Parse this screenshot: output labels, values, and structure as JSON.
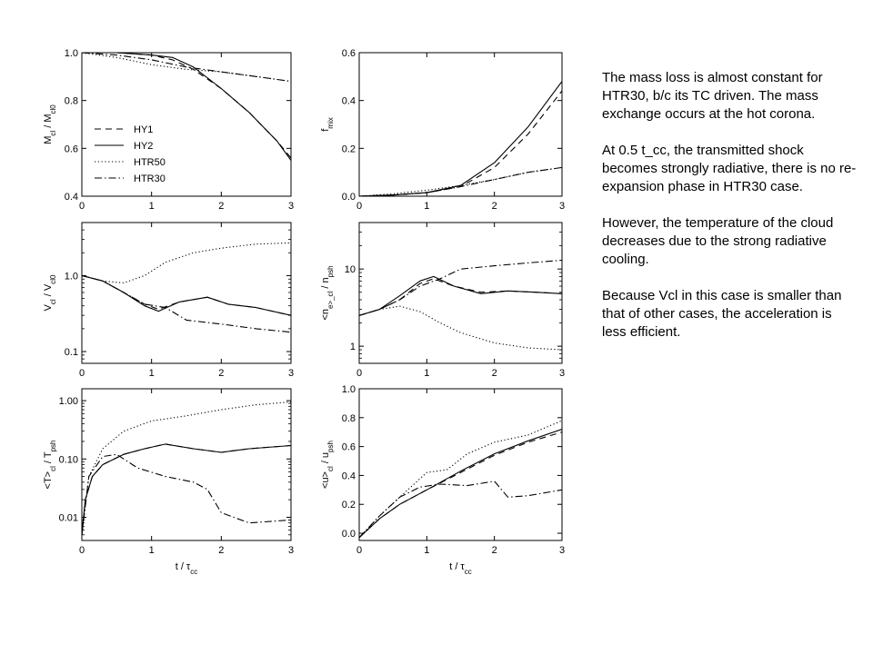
{
  "notes": {
    "p1": "The mass loss is almost constant for HTR30, b/c its TC driven. The mass exchange occurs at the hot corona.",
    "p2": "At 0.5 t_cc, the transmitted shock becomes strongly radiative, there is no re-expansion phase in HTR30 case.",
    "p3": "However, the temperature of the cloud decreases due to the strong radiative cooling.",
    "p4": "Because Vcl in this case is smaller than that of other cases, the acceleration is less efficient."
  },
  "legend": [
    {
      "name": "HY1",
      "dash": "dashed"
    },
    {
      "name": "HY2",
      "dash": "solid"
    },
    {
      "name": "HTR50",
      "dash": "dotted"
    },
    {
      "name": "HTR30",
      "dash": "dashdot"
    }
  ],
  "chart_data": [
    {
      "type": "line",
      "ylabel": "M_cl / M_cl0",
      "xlabel": "",
      "xlim": [
        0,
        3
      ],
      "ylim": [
        0.4,
        1.0
      ],
      "xticks": [
        0,
        1,
        2,
        3
      ],
      "yticks": [
        0.4,
        0.6,
        0.8,
        1.0
      ],
      "ytick_labels": [
        "0.4",
        "0.6",
        "0.8",
        "1.0"
      ],
      "series": [
        {
          "name": "HY1",
          "x": [
            0,
            0.5,
            1.0,
            1.3,
            1.6,
            2.0,
            2.4,
            2.8,
            3.0
          ],
          "y": [
            1.0,
            1.0,
            0.99,
            0.97,
            0.93,
            0.85,
            0.75,
            0.63,
            0.56
          ]
        },
        {
          "name": "HY2",
          "x": [
            0,
            0.5,
            1.0,
            1.3,
            1.6,
            2.0,
            2.4,
            2.8,
            3.0
          ],
          "y": [
            1.0,
            1.0,
            0.99,
            0.98,
            0.94,
            0.85,
            0.75,
            0.63,
            0.55
          ]
        },
        {
          "name": "HTR50",
          "x": [
            0,
            0.5,
            1.0,
            1.5,
            2.0,
            2.5,
            3.0
          ],
          "y": [
            1.0,
            0.98,
            0.95,
            0.93,
            0.92,
            0.9,
            0.88
          ]
        },
        {
          "name": "HTR30",
          "x": [
            0,
            0.5,
            1.0,
            1.5,
            2.0,
            2.5,
            3.0
          ],
          "y": [
            1.0,
            0.99,
            0.97,
            0.94,
            0.92,
            0.9,
            0.88
          ]
        }
      ]
    },
    {
      "type": "line",
      "ylabel": "f_mix",
      "xlabel": "",
      "xlim": [
        0,
        3
      ],
      "ylim": [
        0.0,
        0.6
      ],
      "xticks": [
        0,
        1,
        2,
        3
      ],
      "yticks": [
        0.0,
        0.2,
        0.4,
        0.6
      ],
      "ytick_labels": [
        "0.0",
        "0.2",
        "0.4",
        "0.6"
      ],
      "series": [
        {
          "name": "HY1",
          "x": [
            0,
            0.5,
            1.0,
            1.5,
            2.0,
            2.5,
            3.0
          ],
          "y": [
            0.0,
            0.005,
            0.015,
            0.04,
            0.12,
            0.26,
            0.44
          ]
        },
        {
          "name": "HY2",
          "x": [
            0,
            0.5,
            1.0,
            1.5,
            2.0,
            2.5,
            3.0
          ],
          "y": [
            0.0,
            0.005,
            0.015,
            0.045,
            0.14,
            0.29,
            0.48
          ]
        },
        {
          "name": "HTR50",
          "x": [
            0,
            0.5,
            1.0,
            1.5,
            2.0,
            2.5,
            3.0
          ],
          "y": [
            0.0,
            0.01,
            0.025,
            0.045,
            0.07,
            0.1,
            0.12
          ]
        },
        {
          "name": "HTR30",
          "x": [
            0,
            0.5,
            1.0,
            1.5,
            2.0,
            2.5,
            3.0
          ],
          "y": [
            0.0,
            0.005,
            0.015,
            0.04,
            0.07,
            0.1,
            0.12
          ]
        }
      ]
    },
    {
      "type": "line",
      "ylabel": "V_cl / V_cl0",
      "xlabel": "",
      "xlim": [
        0,
        3
      ],
      "ylim": [
        0.07,
        5
      ],
      "yscale": "log",
      "xticks": [
        0,
        1,
        2,
        3
      ],
      "yticks": [
        0.1,
        1.0
      ],
      "ytick_labels": [
        "0.1",
        "1.0"
      ],
      "series": [
        {
          "name": "HY1",
          "x": [
            0,
            0.3,
            0.6,
            0.9,
            1.1,
            1.4,
            1.8,
            2.1,
            2.5,
            3.0
          ],
          "y": [
            1.0,
            0.85,
            0.6,
            0.42,
            0.36,
            0.45,
            0.52,
            0.42,
            0.38,
            0.3
          ]
        },
        {
          "name": "HY2",
          "x": [
            0,
            0.3,
            0.6,
            0.9,
            1.1,
            1.4,
            1.8,
            2.1,
            2.5,
            3.0
          ],
          "y": [
            1.0,
            0.85,
            0.6,
            0.4,
            0.34,
            0.45,
            0.52,
            0.42,
            0.38,
            0.3
          ]
        },
        {
          "name": "HTR50",
          "x": [
            0,
            0.3,
            0.6,
            0.9,
            1.2,
            1.6,
            2.0,
            2.5,
            3.0
          ],
          "y": [
            1.0,
            0.85,
            0.8,
            1.0,
            1.5,
            2.0,
            2.3,
            2.6,
            2.7
          ]
        },
        {
          "name": "HTR30",
          "x": [
            0,
            0.3,
            0.6,
            0.9,
            1.2,
            1.5,
            2.0,
            2.5,
            3.0
          ],
          "y": [
            1.0,
            0.85,
            0.6,
            0.42,
            0.38,
            0.26,
            0.23,
            0.2,
            0.18
          ]
        }
      ]
    },
    {
      "type": "line",
      "ylabel": "<n_e>_cl / n_psh",
      "xlabel": "",
      "xlim": [
        0,
        3
      ],
      "ylim": [
        0.6,
        40
      ],
      "yscale": "log",
      "xticks": [
        0,
        1,
        2,
        3
      ],
      "yticks": [
        1,
        10
      ],
      "ytick_labels": [
        "1",
        "10"
      ],
      "series": [
        {
          "name": "HY1",
          "x": [
            0,
            0.3,
            0.6,
            0.9,
            1.1,
            1.4,
            1.8,
            2.2,
            2.6,
            3.0
          ],
          "y": [
            2.5,
            3.0,
            4.0,
            6.5,
            7.5,
            6.0,
            5.0,
            5.2,
            5.0,
            4.8
          ]
        },
        {
          "name": "HY2",
          "x": [
            0,
            0.3,
            0.6,
            0.9,
            1.1,
            1.4,
            1.8,
            2.2,
            2.6,
            3.0
          ],
          "y": [
            2.5,
            3.0,
            4.5,
            7.0,
            8.0,
            6.0,
            4.8,
            5.2,
            5.0,
            4.8
          ]
        },
        {
          "name": "HTR50",
          "x": [
            0,
            0.3,
            0.6,
            0.9,
            1.2,
            1.5,
            2.0,
            2.5,
            3.0
          ],
          "y": [
            2.5,
            3.0,
            3.3,
            2.8,
            2.0,
            1.5,
            1.1,
            0.95,
            0.9
          ]
        },
        {
          "name": "HTR30",
          "x": [
            0,
            0.3,
            0.6,
            0.9,
            1.2,
            1.5,
            2.0,
            2.5,
            3.0
          ],
          "y": [
            2.5,
            3.0,
            4.0,
            6.0,
            7.5,
            10.0,
            11.0,
            12.0,
            13.0
          ]
        }
      ]
    },
    {
      "type": "line",
      "ylabel": "<T>_cl / T_psh",
      "xlabel": "t / τ_cc",
      "xlim": [
        0,
        3
      ],
      "ylim": [
        0.004,
        1.6
      ],
      "yscale": "log",
      "xticks": [
        0,
        1,
        2,
        3
      ],
      "yticks": [
        0.01,
        0.1,
        1.0
      ],
      "ytick_labels": [
        "0.01",
        "0.10",
        "1.00"
      ],
      "series": [
        {
          "name": "HY1",
          "x": [
            0,
            0.05,
            0.15,
            0.3,
            0.6,
            0.9,
            1.2,
            1.6,
            2.0,
            2.4,
            3.0
          ],
          "y": [
            0.005,
            0.02,
            0.05,
            0.08,
            0.12,
            0.15,
            0.18,
            0.15,
            0.13,
            0.15,
            0.17
          ]
        },
        {
          "name": "HY2",
          "x": [
            0,
            0.05,
            0.15,
            0.3,
            0.6,
            0.9,
            1.2,
            1.6,
            2.0,
            2.4,
            3.0
          ],
          "y": [
            0.005,
            0.02,
            0.05,
            0.08,
            0.12,
            0.15,
            0.18,
            0.15,
            0.13,
            0.15,
            0.17
          ]
        },
        {
          "name": "HTR50",
          "x": [
            0,
            0.1,
            0.3,
            0.6,
            1.0,
            1.5,
            2.0,
            2.5,
            3.0
          ],
          "y": [
            0.005,
            0.05,
            0.15,
            0.3,
            0.45,
            0.55,
            0.7,
            0.85,
            0.95
          ]
        },
        {
          "name": "HTR30",
          "x": [
            0,
            0.1,
            0.3,
            0.5,
            0.8,
            1.2,
            1.6,
            1.8,
            2.0,
            2.4,
            3.0
          ],
          "y": [
            0.005,
            0.05,
            0.11,
            0.12,
            0.07,
            0.05,
            0.04,
            0.03,
            0.012,
            0.008,
            0.009
          ]
        }
      ]
    },
    {
      "type": "line",
      "ylabel": "<u>_cl / u_psh",
      "xlabel": "t / τ_cc",
      "xlim": [
        0,
        3
      ],
      "ylim": [
        -0.05,
        1.0
      ],
      "xticks": [
        0,
        1,
        2,
        3
      ],
      "yticks": [
        0.0,
        0.2,
        0.4,
        0.6,
        0.8,
        1.0
      ],
      "ytick_labels": [
        "0.0",
        "0.2",
        "0.4",
        "0.6",
        "0.8",
        "1.0"
      ],
      "series": [
        {
          "name": "HY1",
          "x": [
            0,
            0.3,
            0.6,
            1.0,
            1.5,
            2.0,
            2.5,
            3.0
          ],
          "y": [
            -0.03,
            0.1,
            0.2,
            0.3,
            0.42,
            0.54,
            0.63,
            0.7
          ]
        },
        {
          "name": "HY2",
          "x": [
            0,
            0.3,
            0.6,
            1.0,
            1.5,
            2.0,
            2.5,
            3.0
          ],
          "y": [
            -0.03,
            0.1,
            0.2,
            0.3,
            0.43,
            0.55,
            0.64,
            0.72
          ]
        },
        {
          "name": "HTR50",
          "x": [
            0,
            0.3,
            0.6,
            1.0,
            1.3,
            1.6,
            2.0,
            2.5,
            3.0
          ],
          "y": [
            -0.03,
            0.12,
            0.25,
            0.42,
            0.44,
            0.55,
            0.63,
            0.68,
            0.78
          ]
        },
        {
          "name": "HTR30",
          "x": [
            0,
            0.3,
            0.6,
            0.9,
            1.2,
            1.6,
            2.0,
            2.2,
            2.5,
            3.0
          ],
          "y": [
            -0.03,
            0.12,
            0.25,
            0.32,
            0.34,
            0.33,
            0.36,
            0.25,
            0.26,
            0.3
          ]
        }
      ]
    }
  ]
}
